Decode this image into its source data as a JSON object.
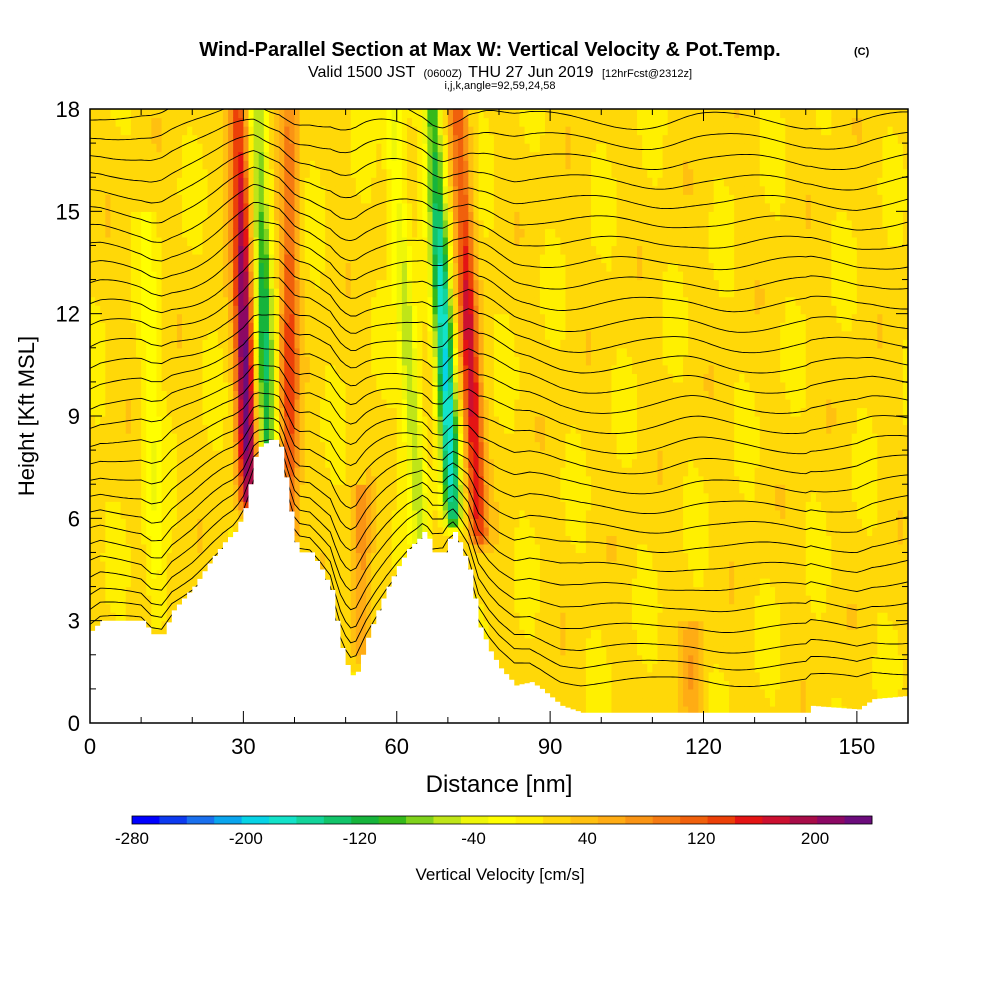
{
  "chart_data": {
    "type": "heatmap",
    "title": "Wind-Parallel Section at Max W: Vertical Velocity & Pot.Temp.",
    "title_mark": "(C)",
    "subtitle_valid": "Valid 1500 JST",
    "subtitle_utc": "(0600Z)",
    "subtitle_date": "THU 27 Jun 2019",
    "subtitle_fcst": "[12hrFcst@2312z]",
    "subtitle_params": "i,j,k,angle=92,59,24,58",
    "xlabel": "Distance [nm]",
    "ylabel": "Height [Kft MSL]",
    "xlim": [
      0,
      160
    ],
    "ylim": [
      0,
      18
    ],
    "x_ticks": [
      0,
      30,
      60,
      90,
      120,
      150
    ],
    "y_ticks": [
      0,
      3,
      6,
      9,
      12,
      15,
      18
    ],
    "colorbar_label": "Vertical Velocity [cm/s]",
    "colorbar_range": [
      -280,
      240
    ],
    "colorbar_ticks": [
      -280,
      -200,
      -120,
      -40,
      40,
      120,
      200
    ],
    "colorbar_colors": [
      "#0000ff",
      "#0d3af0",
      "#1a70ee",
      "#0aa5ee",
      "#07d3e6",
      "#13e2c9",
      "#13d49a",
      "#12c46a",
      "#16b43c",
      "#35b91b",
      "#7fd21c",
      "#bfe518",
      "#eef608",
      "#ffff00",
      "#fff000",
      "#ffd808",
      "#ffc010",
      "#ffac14",
      "#fa9414",
      "#f57a12",
      "#f0600c",
      "#ec4008",
      "#e41414",
      "#cc1030",
      "#a80c48",
      "#8c0864",
      "#6c0c7c"
    ],
    "terrain_profile": [
      [
        0,
        2.7
      ],
      [
        2,
        3.0
      ],
      [
        10,
        3.0
      ],
      [
        12,
        2.6
      ],
      [
        14,
        2.6
      ],
      [
        16,
        3.3
      ],
      [
        20,
        4.0
      ],
      [
        24,
        4.9
      ],
      [
        26,
        5.3
      ],
      [
        28,
        5.6
      ],
      [
        29,
        5.9
      ],
      [
        30,
        6.3
      ],
      [
        31,
        7.0
      ],
      [
        32,
        7.8
      ],
      [
        33,
        8.1
      ],
      [
        34,
        8.2
      ],
      [
        35,
        8.3
      ],
      [
        36,
        8.3
      ],
      [
        37,
        8.1
      ],
      [
        38,
        7.2
      ],
      [
        39,
        6.2
      ],
      [
        40,
        5.3
      ],
      [
        41,
        5.0
      ],
      [
        43,
        5.0
      ],
      [
        45,
        4.5
      ],
      [
        46,
        4.2
      ],
      [
        47,
        3.9
      ],
      [
        48,
        3.0
      ],
      [
        49,
        2.2
      ],
      [
        50,
        1.7
      ],
      [
        51,
        1.4
      ],
      [
        52,
        1.5
      ],
      [
        54,
        2.5
      ],
      [
        56,
        3.3
      ],
      [
        58,
        4.0
      ],
      [
        60,
        4.6
      ],
      [
        62,
        5.1
      ],
      [
        64,
        5.4
      ],
      [
        65,
        5.6
      ],
      [
        66,
        5.4
      ],
      [
        67,
        5.0
      ],
      [
        69,
        5.0
      ],
      [
        70,
        5.4
      ],
      [
        71,
        5.6
      ],
      [
        72,
        5.3
      ],
      [
        73,
        4.9
      ],
      [
        74,
        4.5
      ],
      [
        76,
        2.8
      ],
      [
        78,
        2.1
      ],
      [
        80,
        1.6
      ],
      [
        83,
        1.1
      ],
      [
        86,
        1.2
      ],
      [
        88,
        1.0
      ],
      [
        92,
        0.5
      ],
      [
        96,
        0.3
      ],
      [
        140,
        0.3
      ],
      [
        141,
        0.5
      ],
      [
        150,
        0.4
      ],
      [
        153,
        0.7
      ],
      [
        160,
        0.8
      ]
    ],
    "vertical_velocity_features": [
      {
        "x": 31,
        "z_bottom": 6.5,
        "z_top": 18,
        "lean_nm": 2,
        "w_peak": 220
      },
      {
        "x": 35,
        "z_bottom": 6.0,
        "z_top": 18,
        "lean_nm": 2,
        "w_peak": -140
      },
      {
        "x": 39,
        "z_bottom": 5.5,
        "z_top": 18,
        "lean_nm": 0,
        "w_peak": 120
      },
      {
        "x": 71,
        "z_bottom": 6.0,
        "z_top": 18,
        "lean_nm": 4,
        "w_peak": -200
      },
      {
        "x": 76,
        "z_bottom": 5.5,
        "z_top": 18,
        "lean_nm": 4,
        "w_peak": 160
      },
      {
        "x": 65,
        "z_bottom": 5.0,
        "z_top": 18,
        "lean_nm": 6,
        "w_peak": -90
      },
      {
        "x": 53,
        "z_bottom": 2.0,
        "z_top": 7,
        "lean_nm": 0,
        "w_peak": 60
      },
      {
        "x": 13,
        "z_bottom": 3.0,
        "z_top": 15,
        "lean_nm": 2,
        "w_peak": -40
      },
      {
        "x": 118,
        "z_bottom": 0.5,
        "z_top": 3,
        "lean_nm": 0,
        "w_peak": 45
      }
    ],
    "theta_contour_levels_kft": [
      1.0,
      1.5,
      2.0,
      2.6,
      3.2,
      3.8,
      4.4,
      5.0,
      5.6,
      6.2,
      6.8,
      7.4,
      8.0,
      8.6,
      9.2,
      9.8,
      10.4,
      11.0,
      11.6,
      12.2,
      12.8,
      13.4,
      14.0,
      14.6,
      15.2,
      15.8,
      16.4,
      17.0,
      17.6
    ],
    "colors": {
      "background": "#ffffff",
      "frame": "#000000",
      "terrain": "#ffffff",
      "contour": "#000000"
    }
  }
}
